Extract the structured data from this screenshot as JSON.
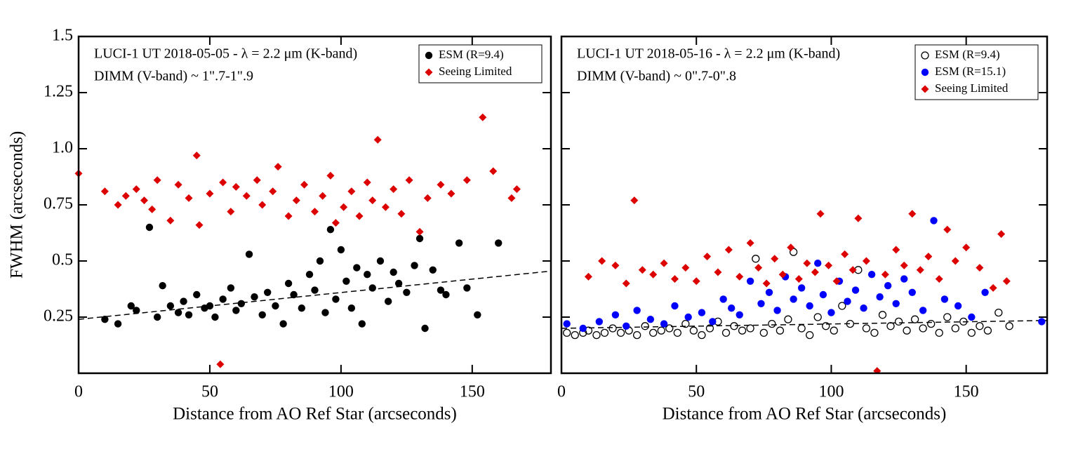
{
  "chart_data": [
    {
      "type": "scatter",
      "annotations": [
        "LUCI-1 UT 2018-05-05 - λ = 2.2 μm (K-band)",
        "DIMM (V-band) ~ 1\".7-1\".9"
      ],
      "xlabel": "Distance from AO Ref Star (arcseconds)",
      "ylabel": "FWHM (arcseconds)",
      "xlim": [
        0,
        180
      ],
      "ylim": [
        0,
        1.5
      ],
      "xticks": [
        0,
        50,
        100,
        150
      ],
      "yticks": [
        0.25,
        0.5,
        0.75,
        {
          "value": 1,
          "label": "1.0"
        },
        1.25,
        1.5
      ],
      "legend": "upper right",
      "fit_line": {
        "x": [
          0,
          180
        ],
        "values": [
          0.24,
          0.455
        ]
      },
      "series": [
        {
          "name": "ESM (R=9.4)",
          "color": "#000000",
          "marker": "circle",
          "x": [
            10,
            15,
            20,
            22,
            27,
            30,
            32,
            35,
            38,
            40,
            42,
            45,
            48,
            50,
            52,
            55,
            58,
            60,
            62,
            65,
            67,
            70,
            72,
            75,
            78,
            80,
            82,
            85,
            88,
            90,
            92,
            94,
            96,
            98,
            100,
            102,
            104,
            106,
            108,
            110,
            112,
            115,
            118,
            120,
            122,
            125,
            128,
            130,
            132,
            135,
            138,
            140,
            145,
            148,
            152,
            160
          ],
          "values": [
            0.24,
            0.22,
            0.3,
            0.28,
            0.65,
            0.25,
            0.39,
            0.3,
            0.27,
            0.32,
            0.26,
            0.35,
            0.29,
            0.3,
            0.25,
            0.33,
            0.38,
            0.28,
            0.31,
            0.53,
            0.34,
            0.26,
            0.36,
            0.3,
            0.22,
            0.4,
            0.35,
            0.29,
            0.44,
            0.37,
            0.5,
            0.27,
            0.64,
            0.33,
            0.55,
            0.41,
            0.29,
            0.47,
            0.22,
            0.44,
            0.38,
            0.5,
            0.32,
            0.45,
            0.4,
            0.36,
            0.48,
            0.6,
            0.2,
            0.46,
            0.37,
            0.35,
            0.58,
            0.38,
            0.26,
            0.58
          ]
        },
        {
          "name": "Seeing Limited",
          "color": "#dd0000",
          "marker": "diamond",
          "x": [
            0,
            10,
            15,
            18,
            22,
            25,
            28,
            30,
            35,
            38,
            42,
            45,
            46,
            50,
            54,
            55,
            58,
            60,
            64,
            68,
            70,
            74,
            76,
            80,
            83,
            86,
            90,
            93,
            96,
            98,
            101,
            104,
            107,
            110,
            112,
            114,
            117,
            120,
            123,
            126,
            130,
            133,
            138,
            142,
            148,
            154,
            158,
            165,
            167
          ],
          "values": [
            0.89,
            0.81,
            0.75,
            0.79,
            0.82,
            0.77,
            0.73,
            0.86,
            0.68,
            0.84,
            0.78,
            0.97,
            0.66,
            0.8,
            0.04,
            0.85,
            0.72,
            0.83,
            0.79,
            0.86,
            0.75,
            0.81,
            0.92,
            0.7,
            0.77,
            0.84,
            0.72,
            0.79,
            0.88,
            0.67,
            0.74,
            0.81,
            0.7,
            0.85,
            0.77,
            1.04,
            0.74,
            0.82,
            0.71,
            0.86,
            0.63,
            0.78,
            0.84,
            0.8,
            0.86,
            1.14,
            0.9,
            0.78,
            0.82
          ]
        }
      ]
    },
    {
      "type": "scatter",
      "annotations": [
        "LUCI-1 UT 2018-05-16 - λ = 2.2 μm (K-band)",
        "DIMM (V-band) ~ 0\".7-0\".8"
      ],
      "xlabel": "Distance from AO Ref Star (arcseconds)",
      "xlim": [
        0,
        180
      ],
      "ylim": [
        0,
        1.5
      ],
      "xticks": [
        0,
        50,
        100,
        150
      ],
      "yticks": [
        0.25,
        0.5,
        0.75,
        1,
        1.25,
        1.5
      ],
      "ytick_labels": false,
      "legend": "upper right",
      "fit_line": {
        "x": [
          0,
          180
        ],
        "values": [
          0.2,
          0.235
        ]
      },
      "series": [
        {
          "name": "ESM (R=9.4)",
          "color": "#000000",
          "marker": "open-circle",
          "x": [
            2,
            5,
            8,
            10,
            13,
            16,
            19,
            22,
            25,
            28,
            31,
            34,
            37,
            40,
            43,
            46,
            49,
            52,
            55,
            58,
            61,
            64,
            67,
            70,
            72,
            75,
            78,
            81,
            84,
            86,
            89,
            92,
            95,
            98,
            101,
            104,
            107,
            110,
            113,
            116,
            119,
            122,
            125,
            128,
            131,
            134,
            137,
            140,
            143,
            146,
            149,
            152,
            155,
            158,
            162,
            166
          ],
          "values": [
            0.18,
            0.17,
            0.18,
            0.19,
            0.17,
            0.18,
            0.2,
            0.18,
            0.19,
            0.17,
            0.21,
            0.18,
            0.19,
            0.2,
            0.18,
            0.22,
            0.19,
            0.17,
            0.2,
            0.23,
            0.18,
            0.21,
            0.19,
            0.2,
            0.51,
            0.18,
            0.22,
            0.19,
            0.24,
            0.54,
            0.2,
            0.17,
            0.25,
            0.21,
            0.19,
            0.3,
            0.22,
            0.46,
            0.2,
            0.18,
            0.26,
            0.21,
            0.23,
            0.19,
            0.24,
            0.2,
            0.22,
            0.18,
            0.25,
            0.2,
            0.23,
            0.18,
            0.21,
            0.19,
            0.27,
            0.21
          ]
        },
        {
          "name": "ESM (R=15.1)",
          "color": "#0000ff",
          "marker": "circle",
          "x": [
            2,
            8,
            14,
            20,
            24,
            28,
            33,
            38,
            42,
            47,
            52,
            56,
            60,
            63,
            66,
            70,
            74,
            77,
            80,
            83,
            86,
            89,
            92,
            95,
            97,
            100,
            103,
            106,
            109,
            112,
            115,
            118,
            121,
            124,
            127,
            130,
            134,
            138,
            142,
            147,
            152,
            157,
            178
          ],
          "values": [
            0.22,
            0.2,
            0.23,
            0.26,
            0.21,
            0.28,
            0.24,
            0.22,
            0.3,
            0.25,
            0.27,
            0.23,
            0.33,
            0.29,
            0.26,
            0.41,
            0.31,
            0.36,
            0.28,
            0.43,
            0.33,
            0.38,
            0.3,
            0.49,
            0.35,
            0.27,
            0.41,
            0.32,
            0.37,
            0.29,
            0.44,
            0.34,
            0.39,
            0.31,
            0.42,
            0.36,
            0.28,
            0.68,
            0.33,
            0.3,
            0.25,
            0.36,
            0.23
          ]
        },
        {
          "name": "Seeing Limited",
          "color": "#dd0000",
          "marker": "diamond",
          "x": [
            10,
            15,
            20,
            24,
            27,
            30,
            34,
            38,
            42,
            46,
            50,
            54,
            58,
            62,
            66,
            70,
            73,
            76,
            79,
            82,
            85,
            88,
            91,
            94,
            96,
            99,
            102,
            105,
            108,
            110,
            113,
            117,
            120,
            124,
            127,
            130,
            133,
            136,
            140,
            143,
            146,
            150,
            155,
            160,
            163,
            165
          ],
          "values": [
            0.43,
            0.5,
            0.48,
            0.4,
            0.77,
            0.46,
            0.44,
            0.49,
            0.42,
            0.47,
            0.41,
            0.52,
            0.45,
            0.55,
            0.43,
            0.58,
            0.47,
            0.4,
            0.51,
            0.44,
            0.56,
            0.42,
            0.49,
            0.45,
            0.71,
            0.48,
            0.41,
            0.53,
            0.46,
            0.69,
            0.5,
            0.01,
            0.44,
            0.55,
            0.48,
            0.71,
            0.46,
            0.52,
            0.42,
            0.64,
            0.5,
            0.56,
            0.47,
            0.38,
            0.62,
            0.41
          ]
        }
      ]
    }
  ]
}
